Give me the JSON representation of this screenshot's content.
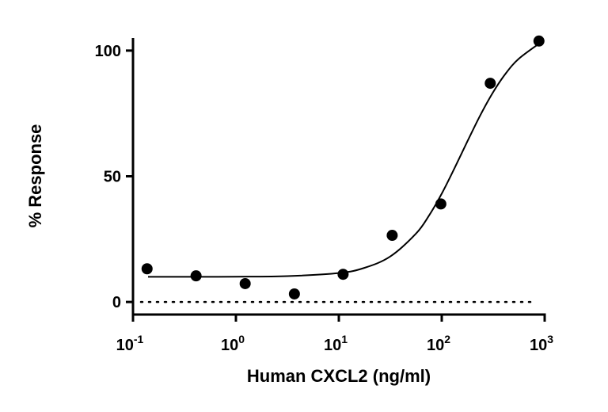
{
  "chart_data": {
    "type": "scatter",
    "title": "",
    "xlabel": "Human CXCL2 (ng/ml)",
    "ylabel": "% Response",
    "x_scale": "log",
    "xlim": [
      0.1,
      1000
    ],
    "ylim": [
      -5,
      105
    ],
    "x_ticks": [
      {
        "value": 0.1,
        "base": "10",
        "exp": "-1"
      },
      {
        "value": 1,
        "base": "10",
        "exp": "0"
      },
      {
        "value": 10,
        "base": "10",
        "exp": "1"
      },
      {
        "value": 100,
        "base": "10",
        "exp": "2"
      },
      {
        "value": 1000,
        "base": "10",
        "exp": "3"
      }
    ],
    "y_ticks": [
      {
        "value": 0,
        "label": "0"
      },
      {
        "value": 50,
        "label": "50"
      },
      {
        "value": 100,
        "label": "100"
      }
    ],
    "grid": false,
    "reference_line": {
      "y": 0,
      "style": "dotted"
    },
    "points": {
      "x": [
        0.137,
        0.41,
        1.23,
        3.7,
        11,
        33,
        98,
        296,
        880
      ],
      "y": [
        13.2,
        10.4,
        7.3,
        3.2,
        11.0,
        26.5,
        39.0,
        87.0,
        103.8
      ]
    },
    "fit_curve": {
      "x": [
        0.14,
        0.316,
        1,
        3.16,
        10,
        17.8,
        31.6,
        56.2,
        75,
        100,
        133,
        178,
        237,
        316,
        422,
        562,
        890
      ],
      "y": [
        10.0,
        10.0,
        10.05,
        10.3,
        11.5,
        13.6,
        18.1,
        27.2,
        34.3,
        43.1,
        53.2,
        64.0,
        74.3,
        83.5,
        91.1,
        96.8,
        102.9
      ]
    },
    "colors": {
      "points": "#000000",
      "curve": "#000000"
    }
  }
}
